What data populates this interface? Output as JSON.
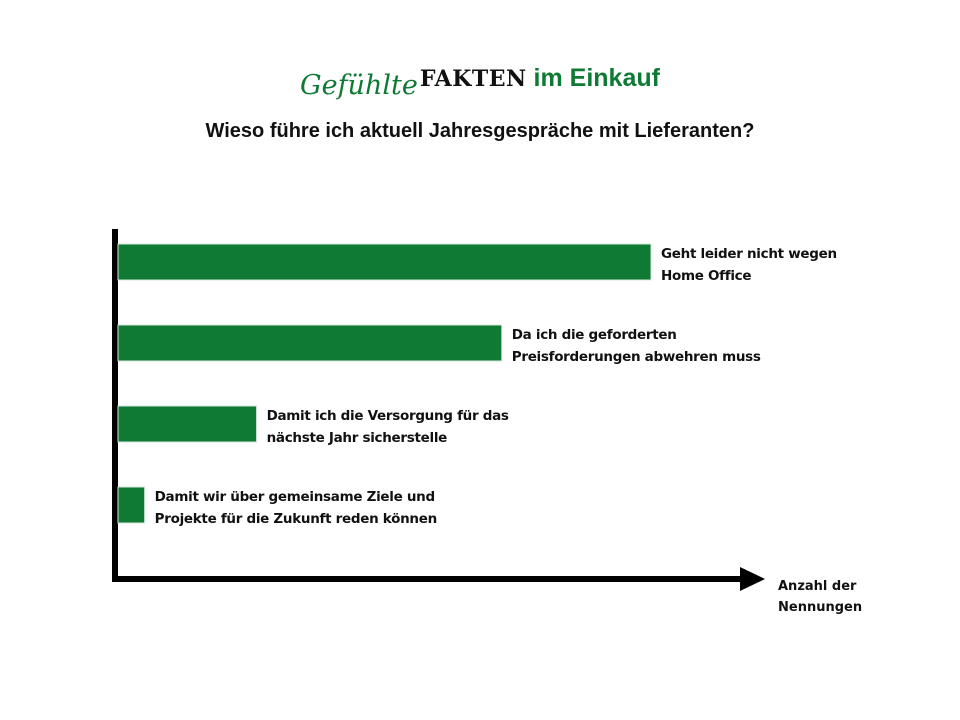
{
  "header": {
    "brand_italic": "Gefühlte",
    "brand_bold": "FAKTEN",
    "brand_rest": " im Einkauf",
    "subtitle": "Wieso führe ich aktuell Jahresgespräche mit Lieferanten?"
  },
  "chart_data": {
    "type": "bar",
    "orientation": "horizontal",
    "categories": [
      "Geht leider nicht wegen Home Office",
      "Da ich die geforderten Preisforderungen abwehren muss",
      "Damit ich die Versorgung für das nächste Jahr sicherstelle",
      "Damit wir über gemeinsame Ziele und Projekte für die Zukunft reden können"
    ],
    "category_lines": [
      [
        "Geht leider nicht wegen",
        "Home Office"
      ],
      [
        "Da ich die geforderten",
        "Preisforderungen abwehren muss"
      ],
      [
        "Damit ich die Versorgung für das",
        "nächste Jahr sicherstelle"
      ],
      [
        "Damit wir über gemeinsame Ziele und",
        "Projekte für die Zukunft reden können"
      ]
    ],
    "values": [
      100,
      72,
      26,
      5
    ],
    "xlabel_lines": [
      "Anzahl der",
      "Nennungen"
    ],
    "ylabel": "",
    "bar_color": "#0e7a33",
    "grid": false,
    "data_labels": false
  }
}
